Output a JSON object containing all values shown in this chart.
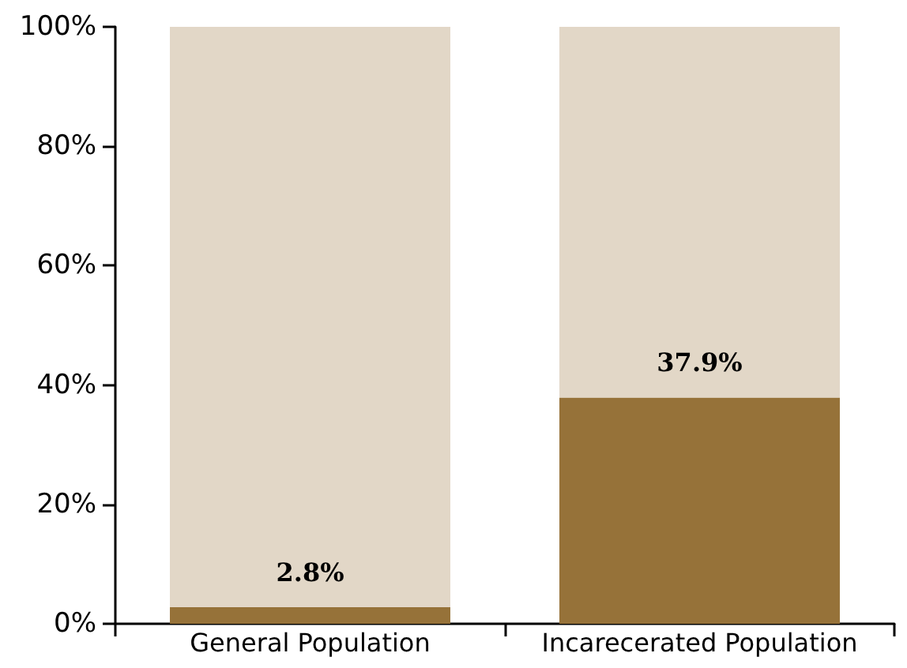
{
  "chart_data": {
    "type": "bar",
    "stacked": true,
    "categories": [
      "General Population",
      "Incarecerated Population"
    ],
    "series": [
      {
        "color": "#967239",
        "values": [
          2.8,
          37.9
        ],
        "value_labels": [
          "2.8%",
          "37.9%"
        ]
      },
      {
        "color": "#e2d7c7",
        "values": [
          97.2,
          62.1
        ]
      }
    ],
    "ylim": [
      0,
      100
    ],
    "yticks": [
      {
        "value": 0,
        "label": "0%"
      },
      {
        "value": 20,
        "label": "20%"
      },
      {
        "value": 40,
        "label": "40%"
      },
      {
        "value": 60,
        "label": "60%"
      },
      {
        "value": 80,
        "label": "80%"
      },
      {
        "value": 100,
        "label": "100%"
      }
    ],
    "grid": false
  }
}
